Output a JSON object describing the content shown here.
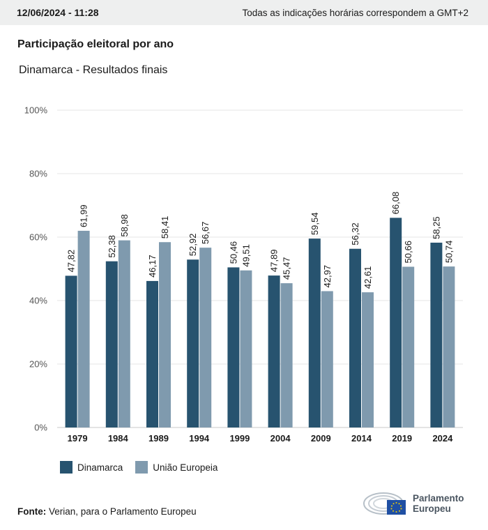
{
  "header": {
    "timestamp": "12/06/2024 - 11:28",
    "timezone_note": "Todas as indicações horárias correspondem a GMT+2"
  },
  "title": "Participação eleitoral por ano",
  "subtitle": "Dinamarca - Resultados finais",
  "colors": {
    "dinamarca": "#27536f",
    "ue": "#7f9aae"
  },
  "chart_data": {
    "type": "bar",
    "categories": [
      "1979",
      "1984",
      "1989",
      "1994",
      "1999",
      "2004",
      "2009",
      "2014",
      "2019",
      "2024"
    ],
    "series": [
      {
        "name": "Dinamarca",
        "values": [
          47.82,
          52.38,
          46.17,
          52.92,
          50.46,
          47.89,
          59.54,
          56.32,
          66.08,
          58.25
        ],
        "labels": [
          "47,82",
          "52,38",
          "46,17",
          "52,92",
          "50,46",
          "47,89",
          "59,54",
          "56,32",
          "66,08",
          "58,25"
        ]
      },
      {
        "name": "União Europeia",
        "values": [
          61.99,
          58.98,
          58.41,
          56.67,
          49.51,
          45.47,
          42.97,
          42.61,
          50.66,
          50.74
        ],
        "labels": [
          "61,99",
          "58,98",
          "58,41",
          "56,67",
          "49,51",
          "45,47",
          "42,97",
          "42,61",
          "50,66",
          "50,74"
        ]
      }
    ],
    "ylim": [
      0,
      100
    ],
    "yticks": [
      0,
      20,
      40,
      60,
      80,
      100
    ],
    "ytick_labels": [
      "0%",
      "20%",
      "40%",
      "60%",
      "80%",
      "100%"
    ],
    "grid": true,
    "legend": "bottom-left"
  },
  "legend": [
    {
      "label": "Dinamarca"
    },
    {
      "label": "União Europeia"
    }
  ],
  "source": {
    "label": "Fonte:",
    "text": "Verian, para o Parlamento Europeu"
  },
  "logo": {
    "line1": "Parlamento",
    "line2": "Europeu"
  }
}
